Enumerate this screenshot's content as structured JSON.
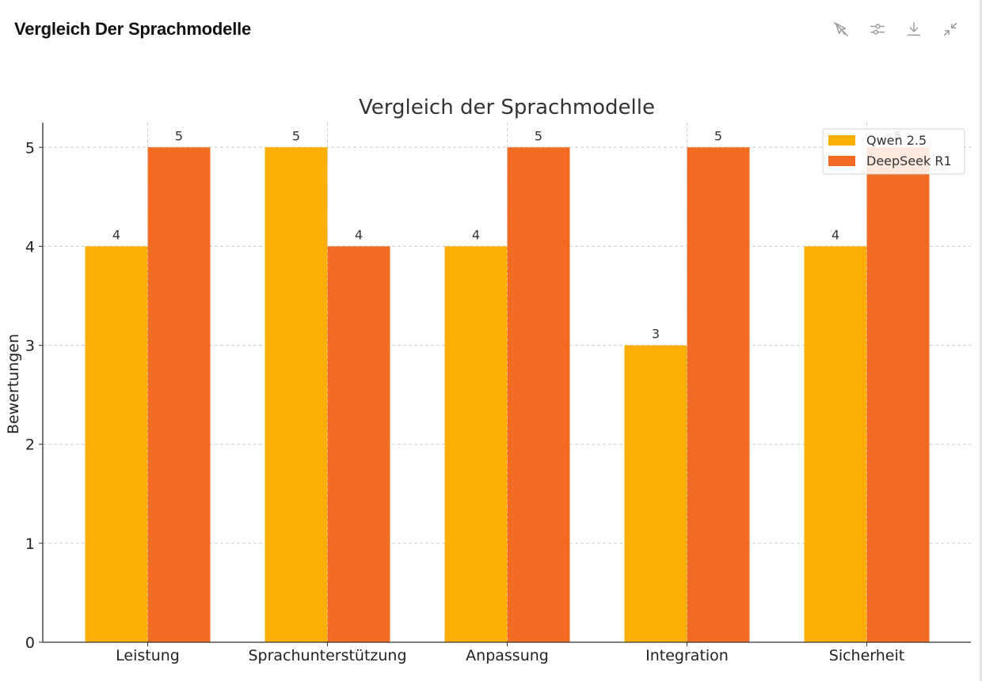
{
  "header": {
    "title": "Vergleich Der Sprachmodelle"
  },
  "toolbar": {
    "buttons": [
      {
        "name": "interactive-toggle",
        "icon": "cursor-off-icon"
      },
      {
        "name": "chart-settings",
        "icon": "sliders-icon"
      },
      {
        "name": "download",
        "icon": "download-icon"
      },
      {
        "name": "collapse",
        "icon": "collapse-icon"
      }
    ]
  },
  "chart_data": {
    "type": "bar",
    "title": "Vergleich der Sprachmodelle",
    "xlabel": "",
    "ylabel": "Bewertungen",
    "categories": [
      "Leistung",
      "Sprachunterstützung",
      "Anpassung",
      "Integration",
      "Sicherheit"
    ],
    "series": [
      {
        "name": "Qwen 2.5",
        "color": "#FBAE06",
        "values": [
          4,
          5,
          4,
          3,
          4
        ]
      },
      {
        "name": "DeepSeek R1",
        "color": "#F26B22",
        "values": [
          5,
          4,
          5,
          5,
          5
        ]
      }
    ],
    "ylim": [
      0,
      5.25
    ],
    "yticks": [
      "0",
      "1",
      "2",
      "3",
      "4",
      "5"
    ],
    "grid": true,
    "legend": "top-right",
    "data_labels": true
  }
}
